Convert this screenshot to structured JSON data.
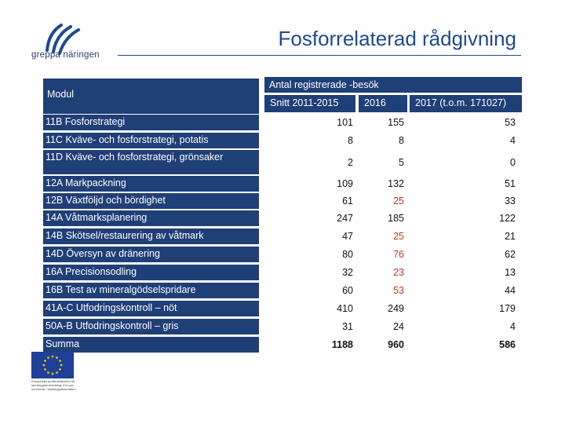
{
  "branding": {
    "logo_text": "greppa näringen",
    "brand_color": "#1f4a8f",
    "eu_caption": "Europeiska jordbruksfonden för landsbygdsutveckling: Europa investerar i landsbygdsområden"
  },
  "title": "Fosforrelaterad rådgivning",
  "table": {
    "header": {
      "module_label": "Modul",
      "group_label": "Antal registrerade -besök",
      "columns": [
        "Snitt 2011-2015",
        "2016",
        "2017 (t.o.m. 171027)"
      ]
    },
    "rows": [
      {
        "label": "11B Fosforstrategi",
        "v1": "101",
        "v2": "155",
        "v3": "53",
        "red": false
      },
      {
        "label": "11C Kväve- och fosforstrategi, potatis",
        "v1": "8",
        "v2": "8",
        "v3": "4",
        "red": false
      },
      {
        "label": "11D Kväve- och fosforstrategi, grönsaker",
        "v1": "2",
        "v2": "5",
        "v3": "0",
        "red": false
      },
      {
        "label": "12A Markpackning",
        "v1": "109",
        "v2": "132",
        "v3": "51",
        "red": false
      },
      {
        "label": "12B Växtföljd och bördighet",
        "v1": "61",
        "v2": "25",
        "v3": "33",
        "red": true
      },
      {
        "label": "14A Våtmarksplanering",
        "v1": "247",
        "v2": "185",
        "v3": "122",
        "red": false
      },
      {
        "label": "14B Skötsel/restaurering av våtmark",
        "v1": "47",
        "v2": "25",
        "v3": "21",
        "red": true
      },
      {
        "label": "14D Översyn av dränering",
        "v1": "80",
        "v2": "76",
        "v3": "62",
        "red": true
      },
      {
        "label": "16A Precisionsodling",
        "v1": "32",
        "v2": "23",
        "v3": "13",
        "red": true
      },
      {
        "label": "16B Test av mineralgödselspridare",
        "v1": "60",
        "v2": "53",
        "v3": "44",
        "red": true
      },
      {
        "label": "41A-C Utfodringskontroll – nöt",
        "v1": "410",
        "v2": "249",
        "v3": "179",
        "red": false
      },
      {
        "label": "50A-B Utfodringskontroll – gris",
        "v1": "31",
        "v2": "24",
        "v3": "4",
        "red": false
      }
    ],
    "total": {
      "label": "Summa",
      "v1": "1188",
      "v2": "960",
      "v3": "586"
    }
  }
}
